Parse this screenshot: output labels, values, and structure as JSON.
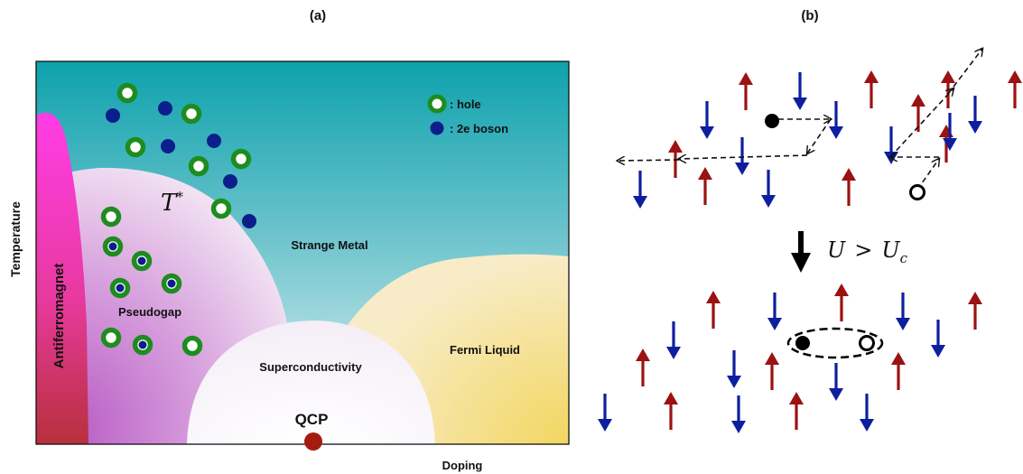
{
  "panel_a": {
    "title": "(a)",
    "y_axis_label": "Temperature",
    "x_axis_label": "Doping",
    "regions": {
      "antiferromagnet": "Antiferromagnet",
      "pseudogap": "Pseudogap",
      "strange_metal": "Strange Metal",
      "superconductivity": "Superconductivity",
      "fermi_liquid": "Fermi Liquid",
      "qcp": "QCP"
    },
    "t_star": {
      "symbol": "T",
      "superscript": "*"
    },
    "legend": [
      {
        "marker": "hole",
        "label": ": hole"
      },
      {
        "marker": "boson",
        "label": ": 2e boson"
      }
    ],
    "colors": {
      "hole_ring": "#1e8c1e",
      "boson": "#0c1e8c",
      "qcp": "#a51b10",
      "antiferromagnet_top": "#ff3ce6",
      "antiferromagnet_bottom": "#c03040",
      "strange_metal_top": "#0da2ad",
      "fermi_liquid": "#f5dc78"
    }
  },
  "panel_b": {
    "title": "(b)",
    "transition": {
      "lhs": "U",
      "op": ">",
      "rhs": "U",
      "sub": "c"
    },
    "colors": {
      "spin_up": "#9b1212",
      "spin_down": "#0d1f9e"
    }
  }
}
